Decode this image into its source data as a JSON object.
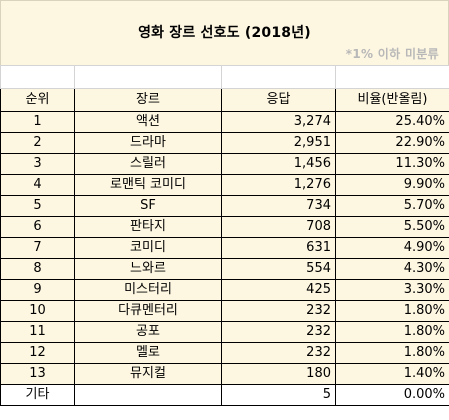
{
  "title": "영화 장르 선호도 (2018년)",
  "note": "*1% 이하 미분류",
  "columns": [
    "순위",
    "장르",
    "응답",
    "비율(반올림)"
  ],
  "rows": [
    {
      "rank": "1",
      "genre": "액션",
      "responses": "3,274",
      "ratio": "25.40%"
    },
    {
      "rank": "2",
      "genre": "드라마",
      "responses": "2,951",
      "ratio": "22.90%"
    },
    {
      "rank": "3",
      "genre": "스릴러",
      "responses": "1,456",
      "ratio": "11.30%"
    },
    {
      "rank": "4",
      "genre": "로맨틱 코미디",
      "responses": "1,276",
      "ratio": "9.90%"
    },
    {
      "rank": "5",
      "genre": "SF",
      "responses": "734",
      "ratio": "5.70%"
    },
    {
      "rank": "6",
      "genre": "판타지",
      "responses": "708",
      "ratio": "5.50%"
    },
    {
      "rank": "7",
      "genre": "코미디",
      "responses": "631",
      "ratio": "4.90%"
    },
    {
      "rank": "8",
      "genre": "느와르",
      "responses": "554",
      "ratio": "4.30%"
    },
    {
      "rank": "9",
      "genre": "미스터리",
      "responses": "425",
      "ratio": "3.30%"
    },
    {
      "rank": "10",
      "genre": "다큐멘터리",
      "responses": "232",
      "ratio": "1.80%"
    },
    {
      "rank": "11",
      "genre": "공포",
      "responses": "232",
      "ratio": "1.80%"
    },
    {
      "rank": "12",
      "genre": "멜로",
      "responses": "232",
      "ratio": "1.80%"
    },
    {
      "rank": "13",
      "genre": "뮤지컬",
      "responses": "180",
      "ratio": "1.40%"
    },
    {
      "rank": "기타",
      "genre": "",
      "responses": "5",
      "ratio": "0.00%"
    }
  ],
  "colors": {
    "header_bg": "#fdf6e1",
    "note_text": "#b8b8b8",
    "border": "#000000"
  }
}
